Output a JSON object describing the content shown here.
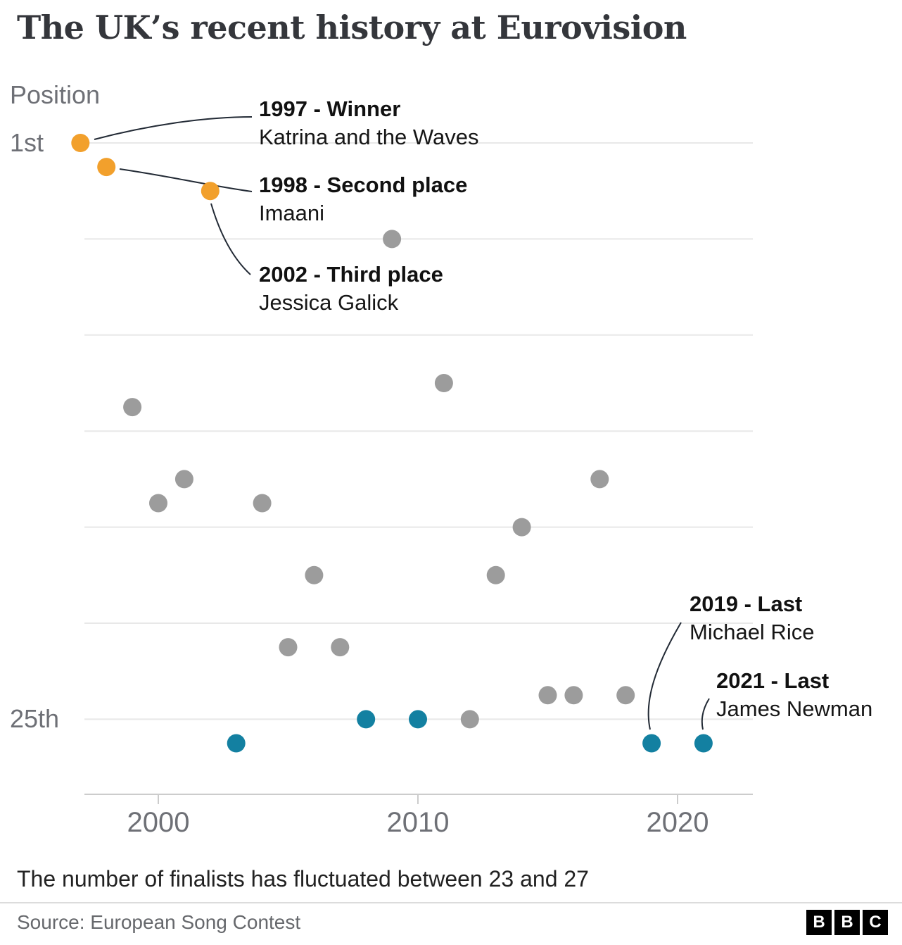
{
  "title": "The UK’s recent history at Eurovision",
  "caption": "The number of finalists has fluctuated between 23 and 27",
  "source": "Source: European Song Contest",
  "logo": {
    "letters": [
      "B",
      "B",
      "C"
    ]
  },
  "colors": {
    "top": "#F2A02C",
    "last": "#1380A1",
    "other": "#9C9C9C",
    "grid": "#E8E8E8",
    "axis": "#CCCCCC",
    "connector": "#222A35",
    "label": "#6E7076",
    "text": "#1A1A1A"
  },
  "chart_data": {
    "type": "scatter",
    "title": "The UK’s recent history at Eurovision",
    "x_axis": {
      "ticks": [
        2000,
        2010,
        2020
      ],
      "range": [
        1996,
        2023
      ]
    },
    "y_axis": {
      "title": "Position",
      "inverted": true,
      "range": [
        1,
        28
      ],
      "tick_labels": [
        {
          "position": 1,
          "label": "1st"
        },
        {
          "position": 25,
          "label": "25th"
        }
      ],
      "gridline_positions": [
        1,
        5,
        9,
        13,
        17,
        21,
        25
      ]
    },
    "points": [
      {
        "year": 1997,
        "position": 1,
        "category": "top"
      },
      {
        "year": 1998,
        "position": 2,
        "category": "top"
      },
      {
        "year": 1999,
        "position": 12,
        "category": "other"
      },
      {
        "year": 2000,
        "position": 16,
        "category": "other"
      },
      {
        "year": 2001,
        "position": 15,
        "category": "other"
      },
      {
        "year": 2002,
        "position": 3,
        "category": "top"
      },
      {
        "year": 2003,
        "position": 26,
        "category": "last"
      },
      {
        "year": 2004,
        "position": 16,
        "category": "other"
      },
      {
        "year": 2005,
        "position": 22,
        "category": "other"
      },
      {
        "year": 2006,
        "position": 19,
        "category": "other"
      },
      {
        "year": 2007,
        "position": 22,
        "category": "other"
      },
      {
        "year": 2008,
        "position": 25,
        "category": "last"
      },
      {
        "year": 2009,
        "position": 5,
        "category": "other"
      },
      {
        "year": 2010,
        "position": 25,
        "category": "last"
      },
      {
        "year": 2011,
        "position": 11,
        "category": "other"
      },
      {
        "year": 2012,
        "position": 25,
        "category": "other"
      },
      {
        "year": 2013,
        "position": 19,
        "category": "other"
      },
      {
        "year": 2014,
        "position": 17,
        "category": "other"
      },
      {
        "year": 2015,
        "position": 24,
        "category": "other"
      },
      {
        "year": 2016,
        "position": 24,
        "category": "other"
      },
      {
        "year": 2017,
        "position": 15,
        "category": "other"
      },
      {
        "year": 2018,
        "position": 24,
        "category": "other"
      },
      {
        "year": 2019,
        "position": 26,
        "category": "last"
      },
      {
        "year": 2021,
        "position": 26,
        "category": "last"
      }
    ],
    "annotations": [
      {
        "id": "1997",
        "title": "1997 - Winner",
        "subtitle": "Katrina and the Waves",
        "year": 1997
      },
      {
        "id": "1998",
        "title": "1998 - Second place",
        "subtitle": "Imaani",
        "year": 1998
      },
      {
        "id": "2002",
        "title": "2002 - Third place",
        "subtitle": "Jessica Galick",
        "year": 2002
      },
      {
        "id": "2019",
        "title": "2019 - Last",
        "subtitle": "Michael Rice",
        "year": 2019
      },
      {
        "id": "2021",
        "title": "2021 - Last",
        "subtitle": "James Newman",
        "year": 2021
      }
    ]
  }
}
